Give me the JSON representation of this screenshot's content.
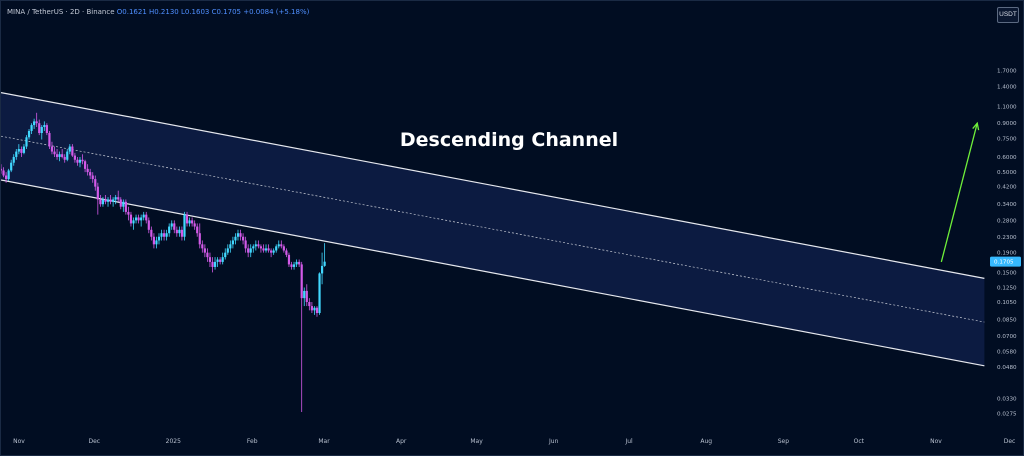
{
  "header": {
    "symbol": "MINA / TetherUS · 2D · Binance",
    "ohlc": "O0.1621 H0.2130 L0.1603 C0.1705 +0.0084 (+5.18%)"
  },
  "currency": "USDT",
  "colors": {
    "background": "#010d22",
    "channel_fill": "#0e1e46",
    "channel_line": "#e6e8ee",
    "mid_line": "#c9cdd6",
    "up_candle": "#41d8ff",
    "down_candle": "#d35ae8",
    "arrow": "#6ff03a",
    "price_tag": "#36b9ff"
  },
  "chart_data": {
    "type": "candlestick",
    "title": "",
    "annotation": "Descending Channel",
    "y_scale": "log",
    "ylim": [
      0.0215,
      3.0
    ],
    "x_domain": [
      -1,
      54
    ],
    "y_ticks": [
      "1.7000",
      "1.4000",
      "1.1000",
      "0.9000",
      "0.7500",
      "0.6000",
      "0.5000",
      "0.4200",
      "0.3400",
      "0.2800",
      "0.2300",
      "0.1900",
      "0.1500",
      "0.1250",
      "0.1050",
      "0.0850",
      "0.0700",
      "0.0580",
      "0.0480",
      "0.0330",
      "0.0275"
    ],
    "x_ticks": [
      {
        "label": "Nov",
        "x": 0
      },
      {
        "label": "Dec",
        "x": 4.2
      },
      {
        "label": "2025",
        "x": 8.6
      },
      {
        "label": "Feb",
        "x": 13.0
      },
      {
        "label": "Mar",
        "x": 17.0
      },
      {
        "label": "Apr",
        "x": 21.3
      },
      {
        "label": "May",
        "x": 25.5
      },
      {
        "label": "Jun",
        "x": 29.8
      },
      {
        "label": "Jul",
        "x": 34.0
      },
      {
        "label": "Aug",
        "x": 38.3
      },
      {
        "label": "Sep",
        "x": 42.6
      },
      {
        "label": "Oct",
        "x": 46.8
      },
      {
        "label": "Nov",
        "x": 51.1
      },
      {
        "label": "Dec",
        "x": 55.2
      }
    ],
    "last_price": "0.1705",
    "candles_start_x": -1.0,
    "candles_step": 0.142,
    "candles": [
      [
        0.52,
        0.55,
        0.49,
        0.51
      ],
      [
        0.51,
        0.53,
        0.47,
        0.48
      ],
      [
        0.48,
        0.5,
        0.44,
        0.46
      ],
      [
        0.46,
        0.52,
        0.45,
        0.51
      ],
      [
        0.51,
        0.58,
        0.5,
        0.56
      ],
      [
        0.56,
        0.62,
        0.54,
        0.6
      ],
      [
        0.6,
        0.66,
        0.58,
        0.64
      ],
      [
        0.64,
        0.7,
        0.62,
        0.66
      ],
      [
        0.66,
        0.68,
        0.6,
        0.63
      ],
      [
        0.63,
        0.7,
        0.62,
        0.68
      ],
      [
        0.68,
        0.78,
        0.66,
        0.76
      ],
      [
        0.76,
        0.84,
        0.74,
        0.82
      ],
      [
        0.82,
        0.9,
        0.79,
        0.88
      ],
      [
        0.88,
        0.95,
        0.84,
        0.92
      ],
      [
        0.92,
        1.02,
        0.86,
        0.9
      ],
      [
        0.9,
        0.94,
        0.78,
        0.8
      ],
      [
        0.8,
        0.88,
        0.74,
        0.86
      ],
      [
        0.86,
        0.92,
        0.82,
        0.88
      ],
      [
        0.88,
        0.9,
        0.78,
        0.8
      ],
      [
        0.8,
        0.82,
        0.66,
        0.68
      ],
      [
        0.68,
        0.72,
        0.62,
        0.64
      ],
      [
        0.64,
        0.68,
        0.6,
        0.62
      ],
      [
        0.62,
        0.66,
        0.58,
        0.6
      ],
      [
        0.6,
        0.64,
        0.57,
        0.62
      ],
      [
        0.62,
        0.66,
        0.59,
        0.6
      ],
      [
        0.6,
        0.62,
        0.56,
        0.58
      ],
      [
        0.58,
        0.66,
        0.57,
        0.64
      ],
      [
        0.64,
        0.7,
        0.62,
        0.68
      ],
      [
        0.68,
        0.7,
        0.6,
        0.61
      ],
      [
        0.61,
        0.63,
        0.56,
        0.58
      ],
      [
        0.58,
        0.6,
        0.54,
        0.56
      ],
      [
        0.56,
        0.6,
        0.53,
        0.58
      ],
      [
        0.58,
        0.62,
        0.55,
        0.57
      ],
      [
        0.57,
        0.58,
        0.5,
        0.52
      ],
      [
        0.52,
        0.55,
        0.48,
        0.5
      ],
      [
        0.5,
        0.52,
        0.46,
        0.48
      ],
      [
        0.48,
        0.5,
        0.44,
        0.46
      ],
      [
        0.46,
        0.48,
        0.4,
        0.42
      ],
      [
        0.42,
        0.44,
        0.3,
        0.36
      ],
      [
        0.36,
        0.38,
        0.33,
        0.34
      ],
      [
        0.34,
        0.37,
        0.33,
        0.36
      ],
      [
        0.36,
        0.38,
        0.34,
        0.35
      ],
      [
        0.35,
        0.37,
        0.33,
        0.36
      ],
      [
        0.36,
        0.38,
        0.34,
        0.35
      ],
      [
        0.35,
        0.37,
        0.33,
        0.36
      ],
      [
        0.36,
        0.38,
        0.34,
        0.37
      ],
      [
        0.37,
        0.4,
        0.35,
        0.36
      ],
      [
        0.36,
        0.37,
        0.32,
        0.33
      ],
      [
        0.33,
        0.36,
        0.31,
        0.35
      ],
      [
        0.35,
        0.36,
        0.3,
        0.31
      ],
      [
        0.31,
        0.33,
        0.28,
        0.3
      ],
      [
        0.3,
        0.31,
        0.26,
        0.27
      ],
      [
        0.27,
        0.29,
        0.25,
        0.28
      ],
      [
        0.28,
        0.3,
        0.27,
        0.29
      ],
      [
        0.29,
        0.3,
        0.27,
        0.28
      ],
      [
        0.28,
        0.3,
        0.26,
        0.29
      ],
      [
        0.29,
        0.31,
        0.28,
        0.3
      ],
      [
        0.3,
        0.31,
        0.27,
        0.28
      ],
      [
        0.28,
        0.29,
        0.24,
        0.25
      ],
      [
        0.25,
        0.26,
        0.22,
        0.23
      ],
      [
        0.23,
        0.24,
        0.2,
        0.21
      ],
      [
        0.21,
        0.23,
        0.2,
        0.22
      ],
      [
        0.22,
        0.24,
        0.21,
        0.23
      ],
      [
        0.23,
        0.25,
        0.22,
        0.24
      ],
      [
        0.24,
        0.25,
        0.22,
        0.23
      ],
      [
        0.23,
        0.25,
        0.22,
        0.24
      ],
      [
        0.24,
        0.27,
        0.23,
        0.26
      ],
      [
        0.26,
        0.28,
        0.25,
        0.27
      ],
      [
        0.27,
        0.28,
        0.24,
        0.25
      ],
      [
        0.25,
        0.26,
        0.23,
        0.24
      ],
      [
        0.24,
        0.26,
        0.23,
        0.25
      ],
      [
        0.25,
        0.26,
        0.22,
        0.23
      ],
      [
        0.23,
        0.31,
        0.22,
        0.3
      ],
      [
        0.3,
        0.31,
        0.26,
        0.27
      ],
      [
        0.27,
        0.29,
        0.26,
        0.28
      ],
      [
        0.28,
        0.29,
        0.26,
        0.27
      ],
      [
        0.27,
        0.28,
        0.25,
        0.26
      ],
      [
        0.26,
        0.27,
        0.23,
        0.24
      ],
      [
        0.24,
        0.27,
        0.2,
        0.21
      ],
      [
        0.21,
        0.22,
        0.19,
        0.2
      ],
      [
        0.2,
        0.21,
        0.18,
        0.19
      ],
      [
        0.19,
        0.2,
        0.17,
        0.18
      ],
      [
        0.18,
        0.19,
        0.16,
        0.17
      ],
      [
        0.17,
        0.18,
        0.15,
        0.16
      ],
      [
        0.16,
        0.18,
        0.155,
        0.17
      ],
      [
        0.17,
        0.18,
        0.16,
        0.175
      ],
      [
        0.175,
        0.18,
        0.165,
        0.17
      ],
      [
        0.17,
        0.19,
        0.165,
        0.18
      ],
      [
        0.18,
        0.2,
        0.175,
        0.19
      ],
      [
        0.19,
        0.21,
        0.185,
        0.2
      ],
      [
        0.2,
        0.22,
        0.19,
        0.21
      ],
      [
        0.21,
        0.23,
        0.2,
        0.22
      ],
      [
        0.22,
        0.24,
        0.21,
        0.23
      ],
      [
        0.23,
        0.25,
        0.22,
        0.24
      ],
      [
        0.24,
        0.25,
        0.22,
        0.23
      ],
      [
        0.23,
        0.24,
        0.21,
        0.22
      ],
      [
        0.22,
        0.23,
        0.19,
        0.2
      ],
      [
        0.2,
        0.21,
        0.18,
        0.19
      ],
      [
        0.19,
        0.21,
        0.18,
        0.2
      ],
      [
        0.2,
        0.21,
        0.19,
        0.205
      ],
      [
        0.205,
        0.22,
        0.195,
        0.21
      ],
      [
        0.21,
        0.22,
        0.2,
        0.205
      ],
      [
        0.205,
        0.21,
        0.19,
        0.2
      ],
      [
        0.2,
        0.21,
        0.19,
        0.195
      ],
      [
        0.195,
        0.21,
        0.19,
        0.2
      ],
      [
        0.2,
        0.21,
        0.19,
        0.195
      ],
      [
        0.195,
        0.2,
        0.18,
        0.19
      ],
      [
        0.19,
        0.2,
        0.185,
        0.195
      ],
      [
        0.195,
        0.21,
        0.19,
        0.205
      ],
      [
        0.205,
        0.22,
        0.2,
        0.21
      ],
      [
        0.21,
        0.22,
        0.2,
        0.205
      ],
      [
        0.205,
        0.21,
        0.19,
        0.195
      ],
      [
        0.195,
        0.2,
        0.18,
        0.185
      ],
      [
        0.185,
        0.19,
        0.16,
        0.165
      ],
      [
        0.165,
        0.17,
        0.155,
        0.16
      ],
      [
        0.16,
        0.17,
        0.155,
        0.165
      ],
      [
        0.165,
        0.175,
        0.16,
        0.17
      ],
      [
        0.17,
        0.175,
        0.16,
        0.165
      ],
      [
        0.165,
        0.17,
        0.028,
        0.11
      ],
      [
        0.11,
        0.125,
        0.1,
        0.12
      ],
      [
        0.12,
        0.13,
        0.1,
        0.105
      ],
      [
        0.105,
        0.11,
        0.095,
        0.1
      ],
      [
        0.1,
        0.105,
        0.092,
        0.095
      ],
      [
        0.095,
        0.1,
        0.09,
        0.098
      ],
      [
        0.098,
        0.1,
        0.088,
        0.092
      ],
      [
        0.092,
        0.15,
        0.09,
        0.148
      ],
      [
        0.148,
        0.19,
        0.13,
        0.162
      ],
      [
        0.1621,
        0.213,
        0.1603,
        0.1705
      ]
    ],
    "channel": {
      "upper": [
        [
          -1,
          1.3
        ],
        [
          53.8,
          0.1395
        ]
      ],
      "lower": [
        [
          -1,
          0.455
        ],
        [
          53.8,
          0.0488
        ]
      ],
      "mid": [
        [
          -1,
          0.77
        ],
        [
          53.8,
          0.0825
        ]
      ]
    },
    "arrow": {
      "from": [
        51.4,
        0.17
      ],
      "to": [
        53.4,
        0.9
      ]
    }
  }
}
